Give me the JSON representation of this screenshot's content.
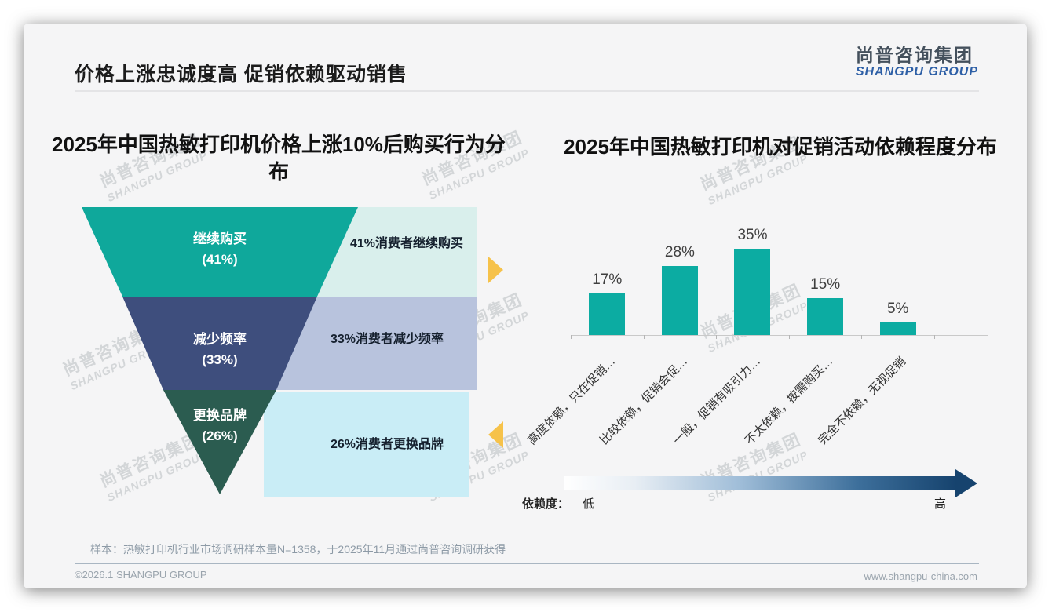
{
  "page": {
    "title": "价格上涨忠诚度高 促销依赖驱动销售",
    "logo": {
      "cn": "尚普咨询集团",
      "en": "SHANGPU GROUP"
    },
    "watermark": {
      "cn": "尚普咨询集团",
      "en": "SHANGPU GROUP"
    },
    "footer": {
      "note": "样本：热敏打印机行业市场调研样本量N=1358，于2025年11月通过尚普咨询调研获得",
      "copyright": "©2026.1 SHANGPU GROUP",
      "website": "www.shangpu-china.com"
    },
    "colors": {
      "teal": "#0FA89B",
      "navy": "#3E4E7D",
      "dark_green": "#2B5C50",
      "bar_teal": "#0CACA2",
      "accent_yellow": "#F6C24A",
      "logo_blue": "#2D5FA6",
      "gradient_end_navy": "#16436E"
    }
  },
  "chart_data": [
    {
      "type": "funnel",
      "title": "2025年中国热敏打印机价格上涨10%后购买行为分布",
      "segments": [
        {
          "label": "继续购买",
          "value": 41,
          "value_text": "(41%)",
          "annotation": "41%消费者继续购买",
          "shape_color": "#0FA89B",
          "panel_color": "#D9EFEC"
        },
        {
          "label": "减少频率",
          "value": 33,
          "value_text": "(33%)",
          "annotation": "33%消费者减少频率",
          "shape_color": "#3E4E7D",
          "panel_color": "#B8C3DD"
        },
        {
          "label": "更换品牌",
          "value": 26,
          "value_text": "(26%)",
          "annotation": "26%消费者更换品牌",
          "shape_color": "#2B5C50",
          "panel_color": "#C9EDF6"
        }
      ]
    },
    {
      "type": "bar",
      "title": "2025年中国热敏打印机对促销活动依赖程度分布",
      "categories": [
        "高度依赖，只在促销…",
        "比较依赖，促销会促…",
        "一般，促销有吸引力…",
        "不太依赖，按需购买…",
        "完全不依赖，无视促销"
      ],
      "values": [
        17,
        28,
        35,
        15,
        5
      ],
      "value_labels": [
        "17%",
        "28%",
        "35%",
        "15%",
        "5%"
      ],
      "bar_color": "#0CACA2",
      "ylim": [
        0,
        40
      ],
      "grid": false,
      "legend": {
        "label": "依赖度：",
        "low": "低",
        "high": "高"
      }
    }
  ]
}
